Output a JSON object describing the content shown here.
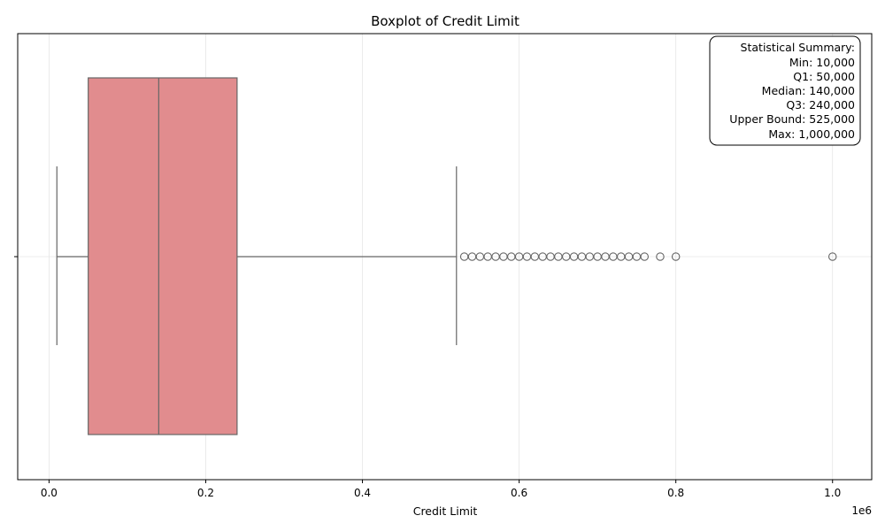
{
  "chart_data": {
    "type": "boxplot",
    "title": "Boxplot of Credit Limit",
    "xlabel": "Credit Limit",
    "ylabel": "",
    "offset_label": "1e6",
    "x_scale_factor": 1000000,
    "xlim": [
      -40000,
      1050000
    ],
    "x_ticks": [
      0,
      200000,
      400000,
      600000,
      800000,
      1000000
    ],
    "x_tick_labels": [
      "0.0",
      "0.2",
      "0.4",
      "0.6",
      "0.8",
      "1.0"
    ],
    "grid": true,
    "box": {
      "whisker_low": 10000,
      "q1": 50000,
      "median": 140000,
      "q3": 240000,
      "whisker_high": 520000,
      "color": "#e18c8e",
      "edge_color": "#666666"
    },
    "outliers": [
      530000,
      540000,
      550000,
      560000,
      570000,
      580000,
      590000,
      600000,
      610000,
      620000,
      630000,
      640000,
      650000,
      660000,
      670000,
      680000,
      690000,
      700000,
      710000,
      720000,
      730000,
      740000,
      750000,
      760000,
      780000,
      800000,
      1000000
    ],
    "summary": {
      "heading": "Statistical Summary:",
      "lines": [
        "Min: 10,000",
        "Q1: 50,000",
        "Median: 140,000",
        "Q3: 240,000",
        "Upper Bound: 525,000",
        "Max: 1,000,000"
      ]
    }
  }
}
